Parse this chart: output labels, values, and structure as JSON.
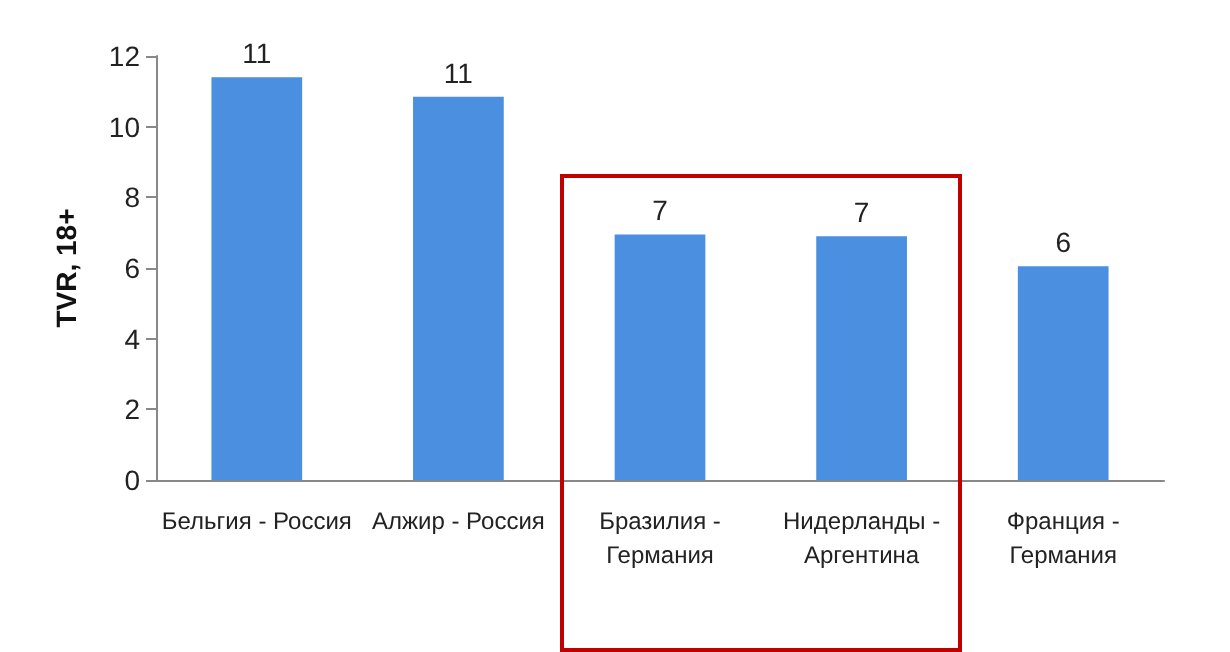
{
  "chart_data": {
    "type": "bar",
    "ylabel": "TVR, 18+",
    "categories": [
      "Бельгия - Россия",
      "Алжир - Россия",
      "Бразилия - Германия",
      "Нидерланды - Аргентина",
      "Франция - Германия"
    ],
    "values": [
      11.4,
      10.85,
      6.95,
      6.9,
      6.05
    ],
    "value_labels": [
      "11",
      "11",
      "7",
      "7",
      "6"
    ],
    "color": "#4a8fe0",
    "ylim": [
      0,
      12
    ],
    "yticks": [
      0,
      2,
      4,
      6,
      8,
      10,
      12
    ],
    "grid": false
  }
}
